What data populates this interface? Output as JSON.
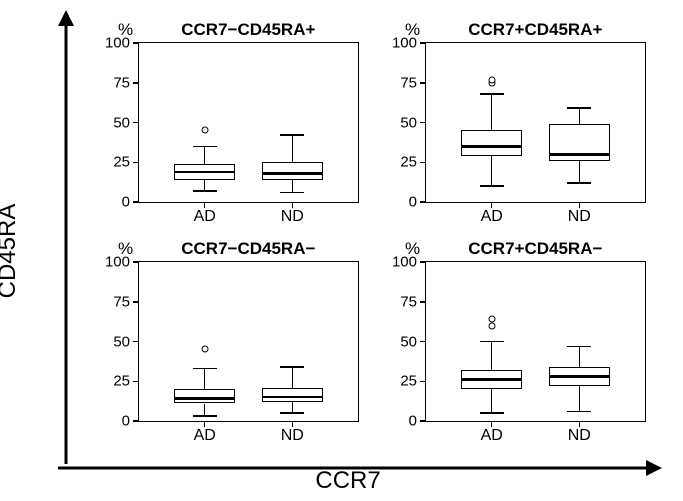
{
  "axes": {
    "y_label": "CD45RA",
    "x_label": "CCR7",
    "arrow_color": "#000000",
    "arrow_width": 3
  },
  "layout": {
    "figure_width": 683,
    "figure_height": 501,
    "background_color": "#ffffff",
    "title_fontsize": 17,
    "title_fontweight": "bold",
    "tick_fontsize": 15,
    "xtick_fontsize": 16,
    "axis_label_fontsize": 24
  },
  "yaxis": {
    "unit": "%",
    "min": 0,
    "max": 100,
    "ticks": [
      0,
      25,
      50,
      75,
      100
    ]
  },
  "xaxis": {
    "categories": [
      "AD",
      "ND"
    ],
    "positions_pct": [
      30,
      70
    ]
  },
  "box_style": {
    "box_width_pct": 28,
    "whisker_cap_width_pct": 11,
    "outlier_diameter": 5,
    "border_color": "#000000",
    "border_width": 1.5,
    "fill_color": "#ffffff",
    "median_width": 2.5
  },
  "panels": [
    {
      "title": "CCR7−CD45RA+",
      "boxes": [
        {
          "q1": 14,
          "median": 19,
          "q3": 24,
          "lo": 7,
          "hi": 35,
          "outliers": [
            45
          ]
        },
        {
          "q1": 14,
          "median": 18,
          "q3": 25,
          "lo": 6,
          "hi": 42,
          "outliers": []
        }
      ]
    },
    {
      "title": "CCR7+CD45RA+",
      "boxes": [
        {
          "q1": 29,
          "median": 35,
          "q3": 45,
          "lo": 10,
          "hi": 68,
          "outliers": [
            75,
            77
          ]
        },
        {
          "q1": 26,
          "median": 30,
          "q3": 49,
          "lo": 12,
          "hi": 59,
          "outliers": []
        }
      ]
    },
    {
      "title": "CCR7−CD45RA−",
      "boxes": [
        {
          "q1": 11,
          "median": 14,
          "q3": 20,
          "lo": 3,
          "hi": 33,
          "outliers": [
            45
          ]
        },
        {
          "q1": 12,
          "median": 15,
          "q3": 21,
          "lo": 5,
          "hi": 34,
          "outliers": []
        }
      ]
    },
    {
      "title": "CCR7+CD45RA−",
      "boxes": [
        {
          "q1": 20,
          "median": 26,
          "q3": 32,
          "lo": 5,
          "hi": 50,
          "outliers": [
            60,
            64
          ]
        },
        {
          "q1": 22,
          "median": 28,
          "q3": 34,
          "lo": 6,
          "hi": 47,
          "outliers": []
        }
      ]
    }
  ]
}
